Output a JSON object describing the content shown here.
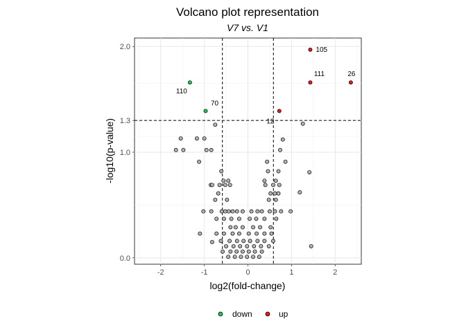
{
  "chart_data": {
    "type": "scatter",
    "title": "Volcano plot representation",
    "subtitle": "V7 vs. V1",
    "xlabel": "log2(fold-change)",
    "ylabel": "-log10(p-value)",
    "xlim": [
      -2.6,
      2.6
    ],
    "ylim": [
      -0.06,
      2.08
    ],
    "xticks": [
      -2,
      -1,
      0,
      1,
      2
    ],
    "xtick_labels": [
      "-2",
      "-1",
      "0",
      "1",
      "2"
    ],
    "yticks": [
      0.0,
      1.0,
      1.3,
      2.0
    ],
    "ytick_labels": [
      "0.0",
      "1.0",
      "1.3",
      "2.0"
    ],
    "grid": true,
    "legend_position": "bottom",
    "thresholds": {
      "fold_change": [
        -0.585,
        0.585
      ],
      "p_value_line": 1.3
    },
    "series": [
      {
        "name": "down",
        "color": "#22c55e",
        "points": [
          {
            "x": -1.33,
            "y": 1.66,
            "label": "110"
          },
          {
            "x": -0.97,
            "y": 1.39,
            "label": "70"
          }
        ]
      },
      {
        "name": "up",
        "color": "#e41a1c",
        "points": [
          {
            "x": 1.43,
            "y": 1.97,
            "label": "105"
          },
          {
            "x": 1.43,
            "y": 1.66,
            "label": "111"
          },
          {
            "x": 2.36,
            "y": 1.66,
            "label": "26"
          },
          {
            "x": 0.72,
            "y": 1.39,
            "label": "12"
          }
        ]
      },
      {
        "color": "#b3b3b3",
        "points": [
          {
            "x": 1.26,
            "y": 1.27
          },
          {
            "x": -0.75,
            "y": 1.26
          },
          {
            "x": -1.54,
            "y": 1.13
          },
          {
            "x": -1.17,
            "y": 1.13
          },
          {
            "x": -1.0,
            "y": 1.13
          },
          {
            "x": 0.8,
            "y": 1.12
          },
          {
            "x": -1.65,
            "y": 1.02
          },
          {
            "x": -1.48,
            "y": 1.02
          },
          {
            "x": -0.95,
            "y": 1.02
          },
          {
            "x": -0.84,
            "y": 1.02
          },
          {
            "x": 0.74,
            "y": 1.02
          },
          {
            "x": -1.12,
            "y": 0.91
          },
          {
            "x": 0.44,
            "y": 0.91
          },
          {
            "x": 0.86,
            "y": 0.91
          },
          {
            "x": -0.61,
            "y": 0.82
          },
          {
            "x": 0.46,
            "y": 0.82
          },
          {
            "x": 0.7,
            "y": 0.82
          },
          {
            "x": 1.41,
            "y": 0.81
          },
          {
            "x": -0.56,
            "y": 0.73
          },
          {
            "x": -0.45,
            "y": 0.73
          },
          {
            "x": 0.38,
            "y": 0.73
          },
          {
            "x": 0.64,
            "y": 0.73
          },
          {
            "x": -0.85,
            "y": 0.69
          },
          {
            "x": -0.82,
            "y": 0.69
          },
          {
            "x": -0.65,
            "y": 0.69
          },
          {
            "x": -0.52,
            "y": 0.69
          },
          {
            "x": -0.41,
            "y": 0.69
          },
          {
            "x": 0.4,
            "y": 0.69
          },
          {
            "x": 0.58,
            "y": 0.69
          },
          {
            "x": 0.72,
            "y": 0.69
          },
          {
            "x": -0.68,
            "y": 0.61
          },
          {
            "x": 0.52,
            "y": 0.61
          },
          {
            "x": 0.62,
            "y": 0.61
          },
          {
            "x": 0.7,
            "y": 0.61
          },
          {
            "x": 1.19,
            "y": 0.62
          },
          {
            "x": -0.75,
            "y": 0.55
          },
          {
            "x": -0.48,
            "y": 0.55
          },
          {
            "x": 0.48,
            "y": 0.55
          },
          {
            "x": 0.64,
            "y": 0.55
          },
          {
            "x": -1.02,
            "y": 0.44
          },
          {
            "x": -0.84,
            "y": 0.44
          },
          {
            "x": -0.6,
            "y": 0.44
          },
          {
            "x": -0.52,
            "y": 0.44
          },
          {
            "x": -0.44,
            "y": 0.44
          },
          {
            "x": -0.35,
            "y": 0.44
          },
          {
            "x": -0.25,
            "y": 0.44
          },
          {
            "x": -0.12,
            "y": 0.44
          },
          {
            "x": 0.08,
            "y": 0.44
          },
          {
            "x": 0.22,
            "y": 0.44
          },
          {
            "x": 0.32,
            "y": 0.44
          },
          {
            "x": 0.5,
            "y": 0.44
          },
          {
            "x": 0.62,
            "y": 0.44
          },
          {
            "x": 0.76,
            "y": 0.44
          },
          {
            "x": 0.98,
            "y": 0.44
          },
          {
            "x": -0.72,
            "y": 0.37
          },
          {
            "x": -0.55,
            "y": 0.37
          },
          {
            "x": -0.38,
            "y": 0.37
          },
          {
            "x": -0.2,
            "y": 0.37
          },
          {
            "x": 0.04,
            "y": 0.37
          },
          {
            "x": 0.19,
            "y": 0.37
          },
          {
            "x": 0.38,
            "y": 0.37
          },
          {
            "x": 0.65,
            "y": 0.37
          },
          {
            "x": -0.4,
            "y": 0.29
          },
          {
            "x": -0.28,
            "y": 0.29
          },
          {
            "x": -0.12,
            "y": 0.29
          },
          {
            "x": 0.12,
            "y": 0.29
          },
          {
            "x": 0.28,
            "y": 0.29
          },
          {
            "x": 0.52,
            "y": 0.29
          },
          {
            "x": -0.72,
            "y": 0.23
          },
          {
            "x": -0.55,
            "y": 0.23
          },
          {
            "x": -0.35,
            "y": 0.23
          },
          {
            "x": -0.2,
            "y": 0.23
          },
          {
            "x": 0.02,
            "y": 0.23
          },
          {
            "x": 0.2,
            "y": 0.23
          },
          {
            "x": 0.38,
            "y": 0.23
          },
          {
            "x": 0.54,
            "y": 0.23
          },
          {
            "x": -1.1,
            "y": 0.23
          },
          {
            "x": -0.62,
            "y": 0.16
          },
          {
            "x": -0.42,
            "y": 0.16
          },
          {
            "x": -0.25,
            "y": 0.16
          },
          {
            "x": -0.1,
            "y": 0.16
          },
          {
            "x": 0.05,
            "y": 0.16
          },
          {
            "x": 0.22,
            "y": 0.16
          },
          {
            "x": 0.38,
            "y": 0.16
          },
          {
            "x": 0.58,
            "y": 0.16
          },
          {
            "x": -0.82,
            "y": 0.15
          },
          {
            "x": -0.5,
            "y": 0.11
          },
          {
            "x": -0.33,
            "y": 0.11
          },
          {
            "x": -0.18,
            "y": 0.11
          },
          {
            "x": -0.02,
            "y": 0.11
          },
          {
            "x": 0.14,
            "y": 0.11
          },
          {
            "x": 0.3,
            "y": 0.11
          },
          {
            "x": 0.48,
            "y": 0.11
          },
          {
            "x": -0.58,
            "y": 0.06
          },
          {
            "x": -0.4,
            "y": 0.06
          },
          {
            "x": -0.26,
            "y": 0.06
          },
          {
            "x": -0.12,
            "y": 0.06
          },
          {
            "x": 0.02,
            "y": 0.06
          },
          {
            "x": 0.16,
            "y": 0.06
          },
          {
            "x": 0.32,
            "y": 0.06
          },
          {
            "x": -0.45,
            "y": 0.01
          },
          {
            "x": -0.3,
            "y": 0.01
          },
          {
            "x": -0.16,
            "y": 0.01
          },
          {
            "x": -0.02,
            "y": 0.01
          },
          {
            "x": 0.12,
            "y": 0.01
          },
          {
            "x": 0.26,
            "y": 0.01
          },
          {
            "x": 1.45,
            "y": 0.11
          }
        ]
      }
    ]
  }
}
